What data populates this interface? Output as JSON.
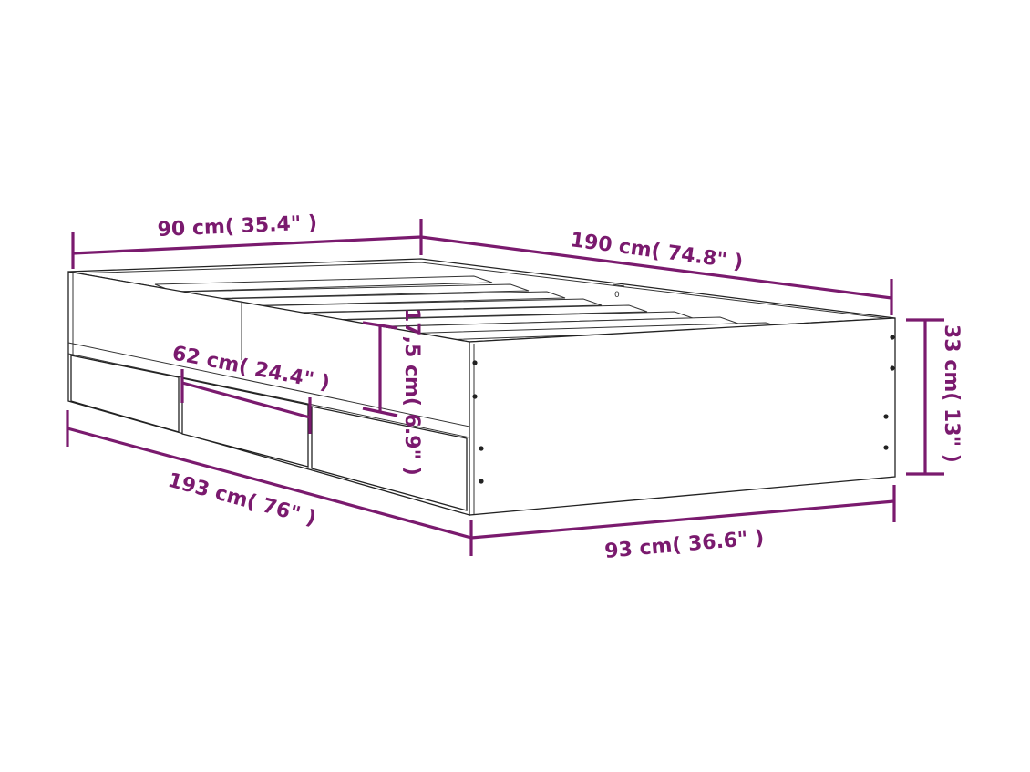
{
  "product": "bed frame with drawers",
  "accent_color": "#7a1a6e",
  "dimensions": {
    "headboard_width": "90 cm( 35.4\" )",
    "length": "190 cm( 74.8\" )",
    "height": "33 cm( 13\" )",
    "outer_width": "93 cm( 36.6\" )",
    "outer_length": "193 cm( 76\" )",
    "drawer_width": "62 cm( 24.4\" )",
    "drawer_height": "17,5 cm( 6.9\" )"
  }
}
